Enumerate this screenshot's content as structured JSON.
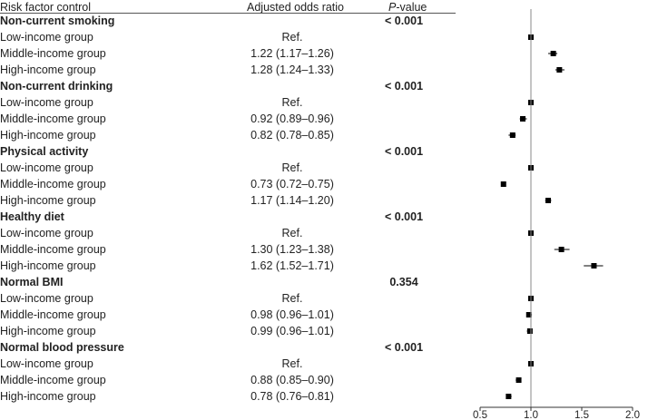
{
  "headers": {
    "factor": "Risk factor control",
    "odds": "Adjusted odds ratio",
    "pvalue_italic": "P",
    "pvalue_rest": "-value"
  },
  "chart_data": {
    "type": "forest",
    "xlim": [
      0.5,
      2.0
    ],
    "reference_line": 1.0,
    "xticks": [
      0.5,
      1.0,
      1.5,
      2.0
    ],
    "xtick_labels": [
      "0.5",
      "1.0",
      "1.5",
      "2.0"
    ],
    "groups": [
      {
        "name": "Non-current smoking",
        "p_value": "< 0.001",
        "rows": [
          {
            "label": "Low-income group",
            "or_text": "Ref.",
            "or": 1.0,
            "lo": 1.0,
            "hi": 1.0
          },
          {
            "label": "Middle-income group",
            "or_text": "1.22 (1.17–1.26)",
            "or": 1.22,
            "lo": 1.17,
            "hi": 1.26
          },
          {
            "label": "High-income group",
            "or_text": "1.28 (1.24–1.33)",
            "or": 1.28,
            "lo": 1.24,
            "hi": 1.33
          }
        ]
      },
      {
        "name": "Non-current drinking",
        "p_value": "< 0.001",
        "rows": [
          {
            "label": "Low-income group",
            "or_text": "Ref.",
            "or": 1.0,
            "lo": 1.0,
            "hi": 1.0
          },
          {
            "label": "Middle-income group",
            "or_text": "0.92 (0.89–0.96)",
            "or": 0.92,
            "lo": 0.89,
            "hi": 0.96
          },
          {
            "label": "High-income group",
            "or_text": "0.82 (0.78–0.85)",
            "or": 0.82,
            "lo": 0.78,
            "hi": 0.85
          }
        ]
      },
      {
        "name": "Physical activity",
        "p_value": "< 0.001",
        "rows": [
          {
            "label": "Low-income group",
            "or_text": "Ref.",
            "or": 1.0,
            "lo": 1.0,
            "hi": 1.0
          },
          {
            "label": "Middle-income group",
            "or_text": "0.73 (0.72–0.75)",
            "or": 0.73,
            "lo": 0.72,
            "hi": 0.75
          },
          {
            "label": "High-income group",
            "or_text": "1.17 (1.14–1.20)",
            "or": 1.17,
            "lo": 1.14,
            "hi": 1.2
          }
        ]
      },
      {
        "name": "Healthy diet",
        "p_value": "< 0.001",
        "rows": [
          {
            "label": "Low-income group",
            "or_text": "Ref.",
            "or": 1.0,
            "lo": 1.0,
            "hi": 1.0
          },
          {
            "label": "Middle-income group",
            "or_text": "1.30 (1.23–1.38)",
            "or": 1.3,
            "lo": 1.23,
            "hi": 1.38
          },
          {
            "label": "High-income group",
            "or_text": "1.62 (1.52–1.71)",
            "or": 1.62,
            "lo": 1.52,
            "hi": 1.71
          }
        ]
      },
      {
        "name": "Normal BMI",
        "p_value": "0.354",
        "rows": [
          {
            "label": "Low-income group",
            "or_text": "Ref.",
            "or": 1.0,
            "lo": 1.0,
            "hi": 1.0
          },
          {
            "label": "Middle-income group",
            "or_text": "0.98 (0.96–1.01)",
            "or": 0.98,
            "lo": 0.96,
            "hi": 1.01
          },
          {
            "label": "High-income group",
            "or_text": "0.99 (0.96–1.01)",
            "or": 0.99,
            "lo": 0.96,
            "hi": 1.01
          }
        ]
      },
      {
        "name": "Normal blood pressure",
        "p_value": "< 0.001",
        "rows": [
          {
            "label": "Low-income group",
            "or_text": "Ref.",
            "or": 1.0,
            "lo": 1.0,
            "hi": 1.0
          },
          {
            "label": "Middle-income group",
            "or_text": "0.88 (0.85–0.90)",
            "or": 0.88,
            "lo": 0.85,
            "hi": 0.9
          },
          {
            "label": "High-income group",
            "or_text": "0.78 (0.76–0.81)",
            "or": 0.78,
            "lo": 0.76,
            "hi": 0.81
          }
        ]
      }
    ]
  }
}
